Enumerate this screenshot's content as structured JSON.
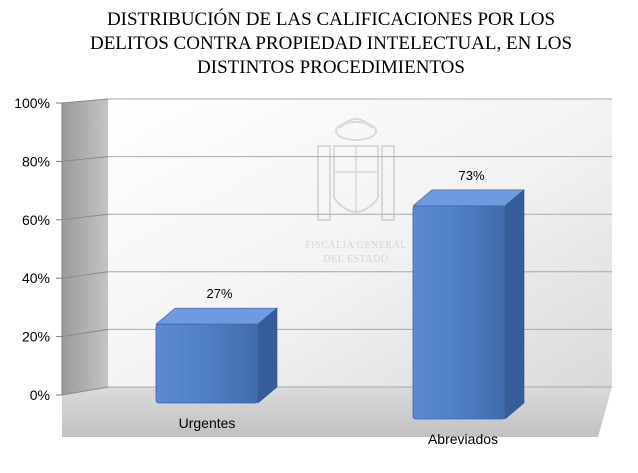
{
  "chart_data": {
    "type": "bar",
    "title_lines": [
      "DISTRIBUCIÓN DE LAS CALIFICACIONES POR LOS",
      "DELITOS CONTRA PROPIEDAD INTELECTUAL, EN LOS",
      "DISTINTOS PROCEDIMIENTOS"
    ],
    "categories": [
      "Urgentes",
      "Abreviados"
    ],
    "values": [
      27,
      73
    ],
    "data_labels": [
      "27%",
      "73%"
    ],
    "ylim": [
      0,
      100
    ],
    "y_ticks": [
      "0%",
      "20%",
      "40%",
      "60%",
      "80%",
      "100%"
    ],
    "grid": true,
    "style_3d": true,
    "bar_color": "#4f7fc4",
    "watermark": {
      "type": "coat-of-arms",
      "lines": [
        "FISCALÍA GENERAL",
        "DEL ESTADO"
      ]
    }
  }
}
